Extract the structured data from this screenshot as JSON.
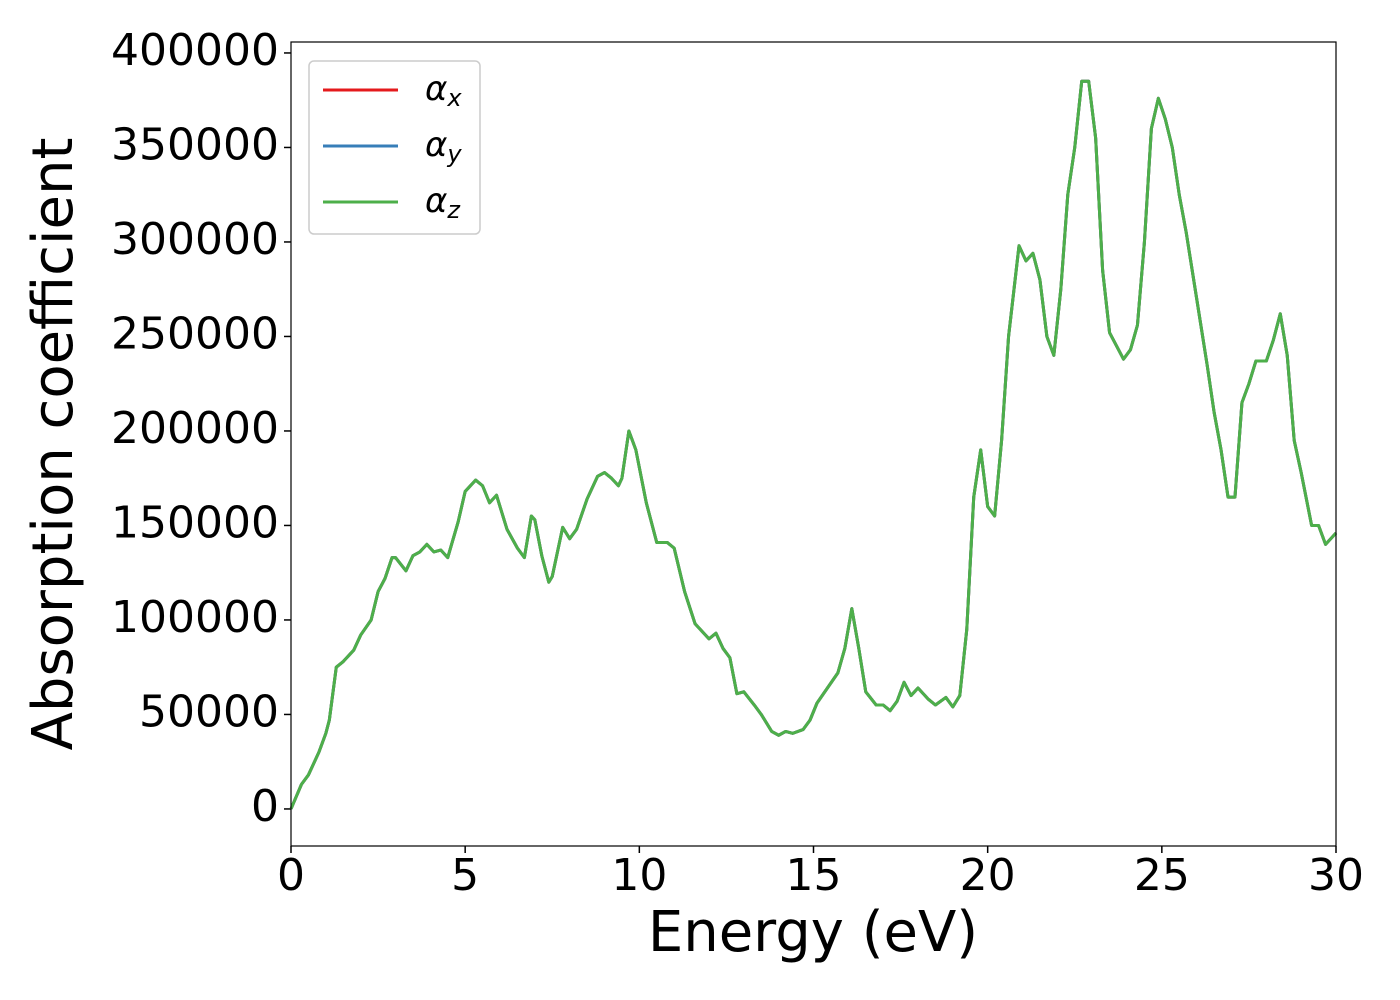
{
  "chart_data": {
    "type": "line",
    "xlabel": "Energy (eV)",
    "ylabel": "Absorption coefficient",
    "x": [
      0,
      0.3,
      0.5,
      0.8,
      1.0,
      1.1,
      1.3,
      1.5,
      1.8,
      2.0,
      2.3,
      2.5,
      2.7,
      2.9,
      3.0,
      3.3,
      3.5,
      3.7,
      3.9,
      4.1,
      4.3,
      4.5,
      4.8,
      5.0,
      5.3,
      5.5,
      5.7,
      5.9,
      6.2,
      6.5,
      6.7,
      6.9,
      7.0,
      7.2,
      7.4,
      7.5,
      7.8,
      8.0,
      8.2,
      8.5,
      8.8,
      9.0,
      9.2,
      9.4,
      9.5,
      9.7,
      9.9,
      10.2,
      10.5,
      10.8,
      11.0,
      11.3,
      11.6,
      12.0,
      12.2,
      12.4,
      12.6,
      12.8,
      13.0,
      13.3,
      13.5,
      13.8,
      14.0,
      14.2,
      14.4,
      14.7,
      14.9,
      15.1,
      15.4,
      15.7,
      15.9,
      16.1,
      16.3,
      16.5,
      16.8,
      17.0,
      17.2,
      17.4,
      17.6,
      17.8,
      18.0,
      18.3,
      18.5,
      18.8,
      19.0,
      19.2,
      19.4,
      19.6,
      19.8,
      20.0,
      20.2,
      20.4,
      20.6,
      20.9,
      21.1,
      21.3,
      21.5,
      21.7,
      21.9,
      22.1,
      22.3,
      22.5,
      22.7,
      22.9,
      23.1,
      23.3,
      23.5,
      23.7,
      23.9,
      24.1,
      24.3,
      24.5,
      24.7,
      24.9,
      25.1,
      25.3,
      25.5,
      25.7,
      26.0,
      26.3,
      26.5,
      26.7,
      26.9,
      27.1,
      27.3,
      27.5,
      27.7,
      28.0,
      28.2,
      28.4,
      28.6,
      28.8,
      29.0,
      29.3,
      29.5,
      29.7,
      30.0
    ],
    "series": [
      {
        "name": "αx",
        "color": "#e41a1c",
        "values": [
          0,
          13000,
          18000,
          30000,
          40000,
          47000,
          75000,
          78000,
          84000,
          92000,
          100000,
          115000,
          122000,
          133000,
          133000,
          126000,
          134000,
          136000,
          140000,
          136000,
          137000,
          133000,
          152000,
          168000,
          174000,
          171000,
          162000,
          166000,
          148000,
          138000,
          133000,
          155000,
          153000,
          134000,
          120000,
          123000,
          149000,
          143000,
          148000,
          164000,
          176000,
          178000,
          175000,
          171000,
          175000,
          200000,
          190000,
          162000,
          141000,
          141000,
          138000,
          115000,
          98000,
          90000,
          93000,
          85000,
          80000,
          61000,
          62000,
          55000,
          50000,
          41000,
          39000,
          41000,
          40000,
          42000,
          47000,
          56000,
          64000,
          72000,
          85000,
          106000,
          85000,
          62000,
          55000,
          55000,
          52000,
          57000,
          67000,
          60000,
          64000,
          58000,
          55000,
          59000,
          54000,
          60000,
          95000,
          165000,
          190000,
          160000,
          155000,
          195000,
          250000,
          298000,
          290000,
          294000,
          280000,
          250000,
          240000,
          275000,
          325000,
          350000,
          385000,
          385000,
          355000,
          285000,
          252000,
          245000,
          238000,
          243000,
          256000,
          300000,
          360000,
          376000,
          365000,
          350000,
          325000,
          305000,
          270000,
          235000,
          210000,
          190000,
          165000,
          165000,
          215000,
          225000,
          237000,
          237000,
          248000,
          262000,
          240000,
          195000,
          178000,
          150000,
          150000,
          140000,
          146000
        ]
      },
      {
        "name": "αy",
        "color": "#377eb8",
        "values": [
          0,
          13000,
          18000,
          30000,
          40000,
          47000,
          75000,
          78000,
          84000,
          92000,
          100000,
          115000,
          122000,
          133000,
          133000,
          126000,
          134000,
          136000,
          140000,
          136000,
          137000,
          133000,
          152000,
          168000,
          174000,
          171000,
          162000,
          166000,
          148000,
          138000,
          133000,
          155000,
          153000,
          134000,
          120000,
          123000,
          149000,
          143000,
          148000,
          164000,
          176000,
          178000,
          175000,
          171000,
          175000,
          200000,
          190000,
          162000,
          141000,
          141000,
          138000,
          115000,
          98000,
          90000,
          93000,
          85000,
          80000,
          61000,
          62000,
          55000,
          50000,
          41000,
          39000,
          41000,
          40000,
          42000,
          47000,
          56000,
          64000,
          72000,
          85000,
          106000,
          85000,
          62000,
          55000,
          55000,
          52000,
          57000,
          67000,
          60000,
          64000,
          58000,
          55000,
          59000,
          54000,
          60000,
          95000,
          165000,
          190000,
          160000,
          155000,
          195000,
          250000,
          298000,
          290000,
          294000,
          280000,
          250000,
          240000,
          275000,
          325000,
          350000,
          385000,
          385000,
          355000,
          285000,
          252000,
          245000,
          238000,
          243000,
          256000,
          300000,
          360000,
          376000,
          365000,
          350000,
          325000,
          305000,
          270000,
          235000,
          210000,
          190000,
          165000,
          165000,
          215000,
          225000,
          237000,
          237000,
          248000,
          262000,
          240000,
          195000,
          178000,
          150000,
          150000,
          140000,
          146000
        ]
      },
      {
        "name": "αz",
        "color": "#4daf4a",
        "values": [
          0,
          13000,
          18000,
          30000,
          40000,
          47000,
          75000,
          78000,
          84000,
          92000,
          100000,
          115000,
          122000,
          133000,
          133000,
          126000,
          134000,
          136000,
          140000,
          136000,
          137000,
          133000,
          152000,
          168000,
          174000,
          171000,
          162000,
          166000,
          148000,
          138000,
          133000,
          155000,
          153000,
          134000,
          120000,
          123000,
          149000,
          143000,
          148000,
          164000,
          176000,
          178000,
          175000,
          171000,
          175000,
          200000,
          190000,
          162000,
          141000,
          141000,
          138000,
          115000,
          98000,
          90000,
          93000,
          85000,
          80000,
          61000,
          62000,
          55000,
          50000,
          41000,
          39000,
          41000,
          40000,
          42000,
          47000,
          56000,
          64000,
          72000,
          85000,
          106000,
          85000,
          62000,
          55000,
          55000,
          52000,
          57000,
          67000,
          60000,
          64000,
          58000,
          55000,
          59000,
          54000,
          60000,
          95000,
          165000,
          190000,
          160000,
          155000,
          195000,
          250000,
          298000,
          290000,
          294000,
          280000,
          250000,
          240000,
          275000,
          325000,
          350000,
          385000,
          385000,
          355000,
          285000,
          252000,
          245000,
          238000,
          243000,
          256000,
          300000,
          360000,
          376000,
          365000,
          350000,
          325000,
          305000,
          270000,
          235000,
          210000,
          190000,
          165000,
          165000,
          215000,
          225000,
          237000,
          237000,
          248000,
          262000,
          240000,
          195000,
          178000,
          150000,
          150000,
          140000,
          146000
        ]
      }
    ],
    "xlim": [
      0,
      30
    ],
    "xticks": [
      0,
      5,
      10,
      15,
      20,
      25,
      30
    ],
    "ylim": [
      -19600,
      405800
    ],
    "yticks": [
      0,
      50000,
      100000,
      150000,
      200000,
      250000,
      300000,
      350000,
      400000
    ],
    "legend": "upper left"
  }
}
